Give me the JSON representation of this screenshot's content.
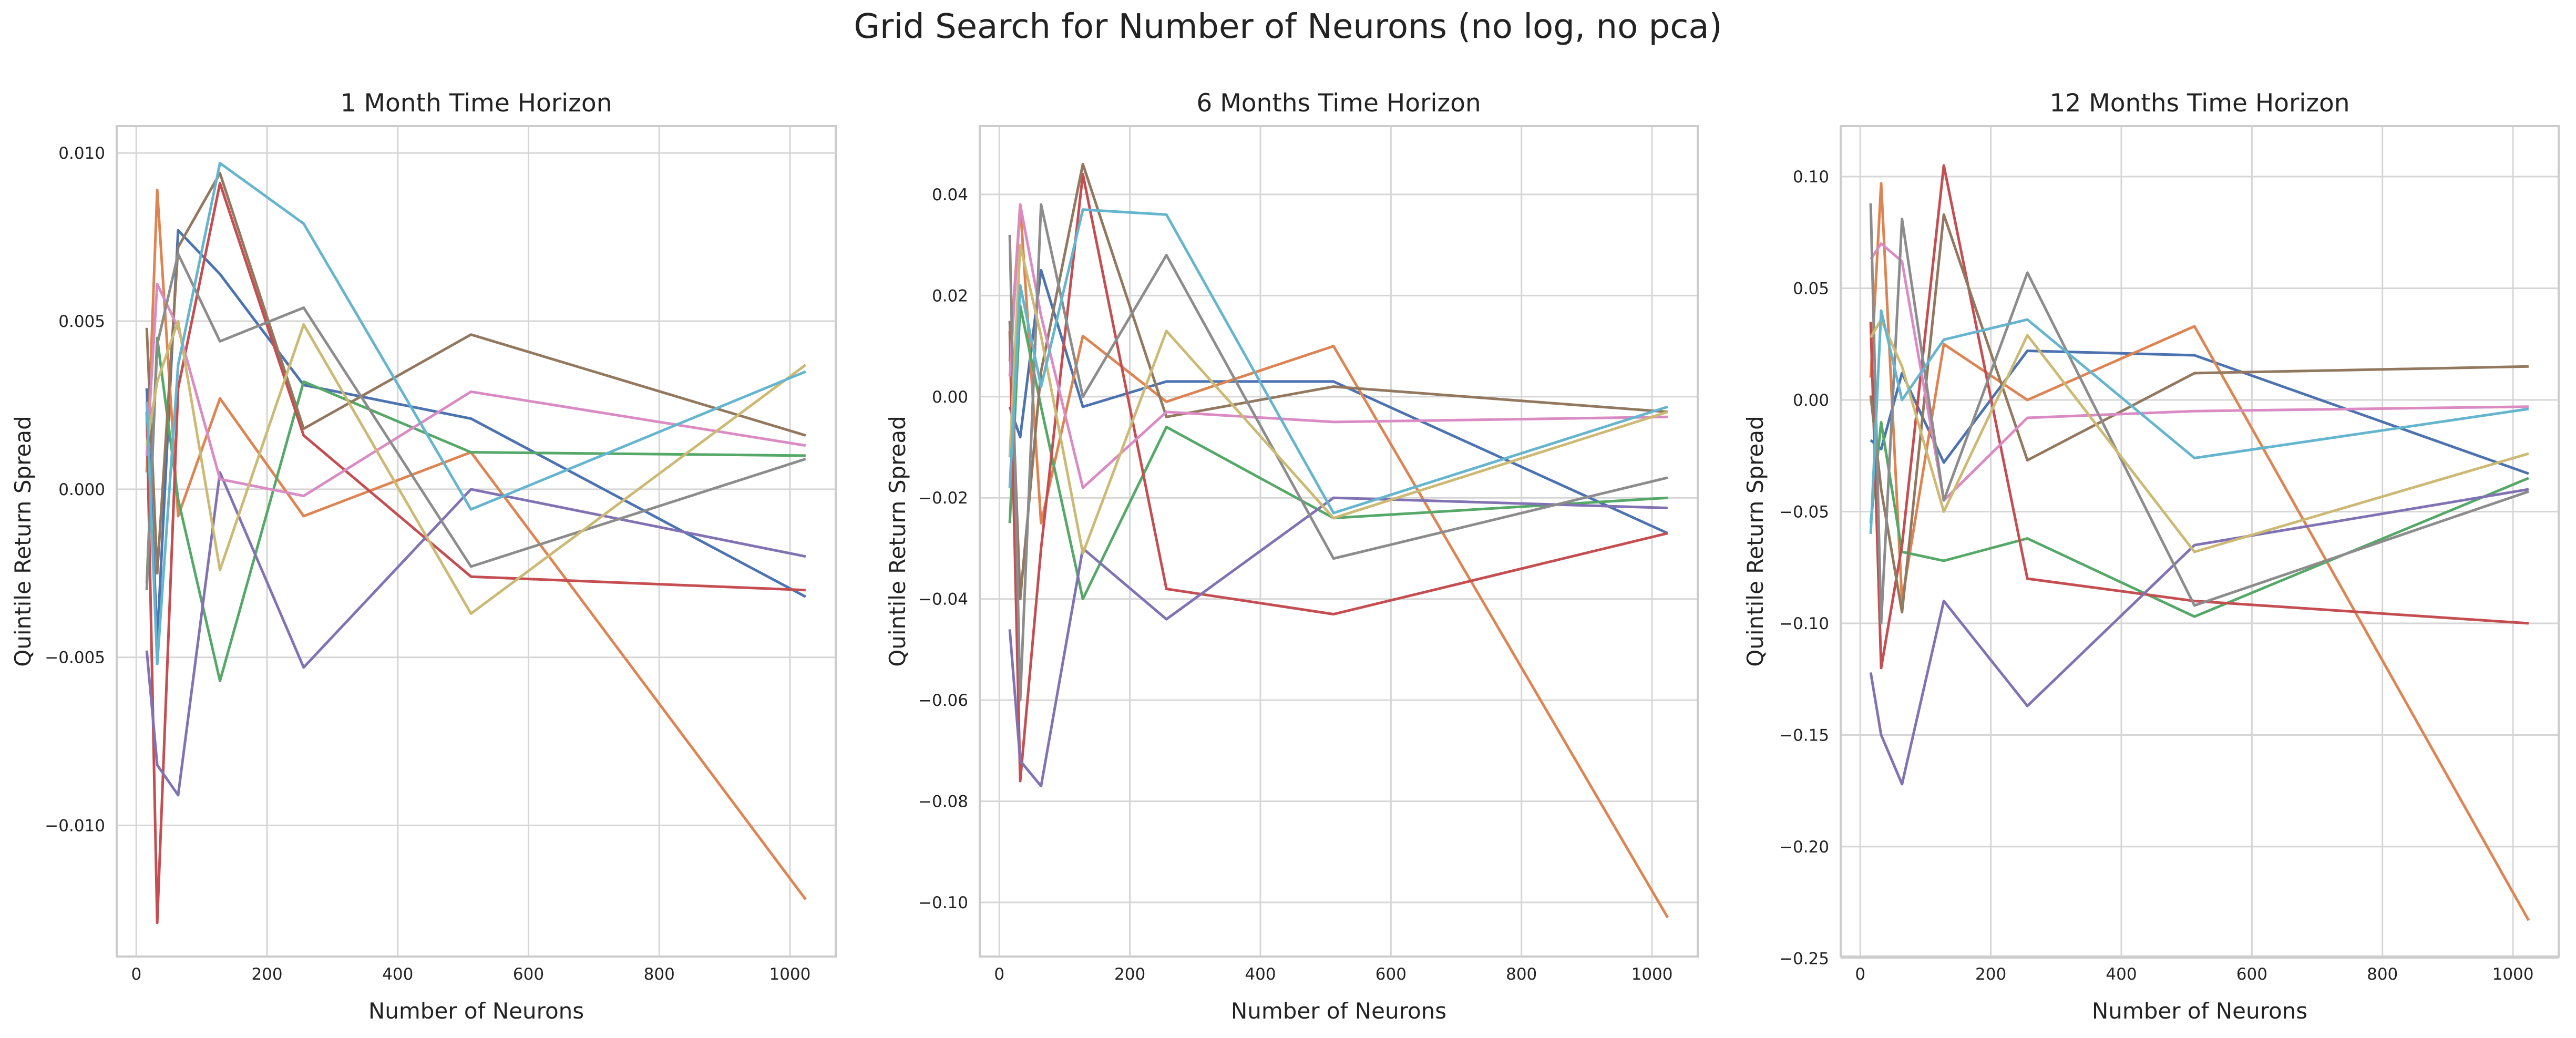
{
  "figure": {
    "title": "Grid Search for Number of Neurons (no log, no pca)"
  },
  "palette": [
    "#4c72b0",
    "#dd8452",
    "#55a868",
    "#c44e52",
    "#8172b3",
    "#937860",
    "#da8bc3",
    "#8c8c8c",
    "#ccb974",
    "#64b5cd"
  ],
  "chart_data": [
    {
      "type": "line",
      "title": "1 Month Time Horizon",
      "xlabel": "Number of Neurons",
      "ylabel": "Quintile Return Spread",
      "xlim": [
        -30,
        1070
      ],
      "ylim": [
        -0.0139,
        0.0108
      ],
      "xticks": [
        0,
        200,
        400,
        600,
        800,
        1000
      ],
      "xtick_labels": [
        "0",
        "200",
        "400",
        "600",
        "800",
        "1000"
      ],
      "yticks": [
        -0.01,
        -0.005,
        0.0,
        0.005,
        0.01
      ],
      "ytick_labels": [
        "−0.010",
        "−0.005",
        "0.000",
        "0.005",
        "0.010"
      ],
      "grid": true,
      "x": [
        16,
        32,
        64,
        128,
        256,
        512,
        1024
      ],
      "series": [
        {
          "values": [
            0.003,
            -0.0045,
            0.0077,
            0.0064,
            0.0031,
            0.0021,
            -0.0032
          ]
        },
        {
          "values": [
            0.0005,
            0.0089,
            -0.0008,
            0.0027,
            -0.0008,
            0.0011,
            -0.0122
          ]
        },
        {
          "values": [
            -0.0028,
            0.0045,
            -0.0003,
            -0.0057,
            0.0032,
            0.0011,
            0.001
          ]
        },
        {
          "values": [
            0.0023,
            -0.0129,
            0.003,
            0.0091,
            0.0016,
            -0.0026,
            -0.003
          ]
        },
        {
          "values": [
            -0.0048,
            -0.0082,
            -0.0091,
            0.0005,
            -0.0053,
            0.0,
            -0.002
          ]
        },
        {
          "values": [
            0.0048,
            -0.0025,
            0.0072,
            0.0094,
            0.0018,
            0.0046,
            0.0016
          ]
        },
        {
          "values": [
            0.001,
            0.0061,
            0.0048,
            0.0003,
            -0.0002,
            0.0029,
            0.0013
          ]
        },
        {
          "values": [
            -0.003,
            0.0043,
            0.007,
            0.0044,
            0.0054,
            -0.0023,
            0.0009
          ]
        },
        {
          "values": [
            0.0013,
            0.0032,
            0.005,
            -0.0024,
            0.0049,
            -0.0037,
            0.0037
          ]
        },
        {
          "values": [
            0.0026,
            -0.0052,
            0.0037,
            0.0097,
            0.0079,
            -0.0006,
            0.0035
          ]
        }
      ]
    },
    {
      "type": "line",
      "title": "6 Months Time Horizon",
      "xlabel": "Number of Neurons",
      "ylabel": "Quintile Return Spread",
      "xlim": [
        -30,
        1070
      ],
      "ylim": [
        -0.1107,
        0.0535
      ],
      "xticks": [
        0,
        200,
        400,
        600,
        800,
        1000
      ],
      "xtick_labels": [
        "0",
        "200",
        "400",
        "600",
        "800",
        "1000"
      ],
      "yticks": [
        -0.1,
        -0.08,
        -0.06,
        -0.04,
        -0.02,
        0.0,
        0.02,
        0.04
      ],
      "ytick_labels": [
        "−0.10",
        "−0.08",
        "−0.06",
        "−0.04",
        "−0.02",
        "0.00",
        "0.02",
        "0.04"
      ],
      "grid": true,
      "x": [
        16,
        32,
        64,
        128,
        256,
        512,
        1024
      ],
      "series": [
        {
          "values": [
            -0.002,
            -0.008,
            0.025,
            -0.002,
            0.003,
            0.003,
            -0.027
          ]
        },
        {
          "values": [
            0.007,
            0.038,
            -0.025,
            0.012,
            -0.001,
            0.01,
            -0.103
          ]
        },
        {
          "values": [
            -0.025,
            0.018,
            -0.002,
            -0.04,
            -0.006,
            -0.024,
            -0.02
          ]
        },
        {
          "values": [
            0.013,
            -0.076,
            -0.03,
            0.044,
            -0.038,
            -0.043,
            -0.027
          ]
        },
        {
          "values": [
            -0.046,
            -0.072,
            -0.077,
            -0.03,
            -0.044,
            -0.02,
            -0.022
          ]
        },
        {
          "values": [
            0.015,
            -0.04,
            0.005,
            0.046,
            -0.004,
            0.002,
            -0.003
          ]
        },
        {
          "values": [
            0.004,
            0.038,
            0.016,
            -0.018,
            -0.003,
            -0.005,
            -0.004
          ]
        },
        {
          "values": [
            0.032,
            -0.06,
            0.038,
            0.0,
            0.028,
            -0.032,
            -0.016
          ]
        },
        {
          "values": [
            -0.012,
            0.03,
            0.012,
            -0.031,
            0.013,
            -0.024,
            -0.003
          ]
        },
        {
          "values": [
            -0.018,
            0.022,
            0.002,
            0.037,
            0.036,
            -0.023,
            -0.002
          ]
        }
      ]
    },
    {
      "type": "line",
      "title": "12 Months Time Horizon",
      "xlabel": "Number of Neurons",
      "ylabel": "Quintile Return Spread",
      "xlim": [
        -30,
        1070
      ],
      "ylim": [
        -0.2492,
        0.1226
      ],
      "xticks": [
        0,
        200,
        400,
        600,
        800,
        1000
      ],
      "xtick_labels": [
        "0",
        "200",
        "400",
        "600",
        "800",
        "1000"
      ],
      "yticks": [
        -0.25,
        -0.2,
        -0.15,
        -0.1,
        -0.05,
        0.0,
        0.05,
        0.1
      ],
      "ytick_labels": [
        "−0.25",
        "−0.20",
        "−0.15",
        "−0.10",
        "−0.05",
        "0.00",
        "0.05",
        "0.10"
      ],
      "grid": true,
      "x": [
        16,
        32,
        64,
        128,
        256,
        512,
        1024
      ],
      "series": [
        {
          "values": [
            -0.018,
            -0.022,
            0.012,
            -0.028,
            0.022,
            0.02,
            -0.033
          ]
        },
        {
          "values": [
            0.01,
            0.097,
            -0.09,
            0.025,
            0.0,
            0.033,
            -0.233
          ]
        },
        {
          "values": [
            -0.055,
            -0.01,
            -0.068,
            -0.072,
            -0.062,
            -0.097,
            -0.035
          ]
        },
        {
          "values": [
            0.035,
            -0.12,
            -0.065,
            0.105,
            -0.08,
            -0.09,
            -0.1
          ]
        },
        {
          "values": [
            -0.122,
            -0.15,
            -0.172,
            -0.09,
            -0.137,
            -0.065,
            -0.04
          ]
        },
        {
          "values": [
            0.002,
            -0.04,
            -0.095,
            0.083,
            -0.027,
            0.012,
            0.015
          ]
        },
        {
          "values": [
            0.063,
            0.07,
            0.062,
            -0.045,
            -0.008,
            -0.005,
            -0.003
          ]
        },
        {
          "values": [
            0.088,
            -0.1,
            0.081,
            -0.045,
            0.057,
            -0.092,
            -0.041
          ]
        },
        {
          "values": [
            0.028,
            0.036,
            0.015,
            -0.05,
            0.029,
            -0.068,
            -0.024
          ]
        },
        {
          "values": [
            -0.06,
            0.04,
            0.0,
            0.027,
            0.036,
            -0.026,
            -0.004
          ]
        }
      ]
    }
  ]
}
